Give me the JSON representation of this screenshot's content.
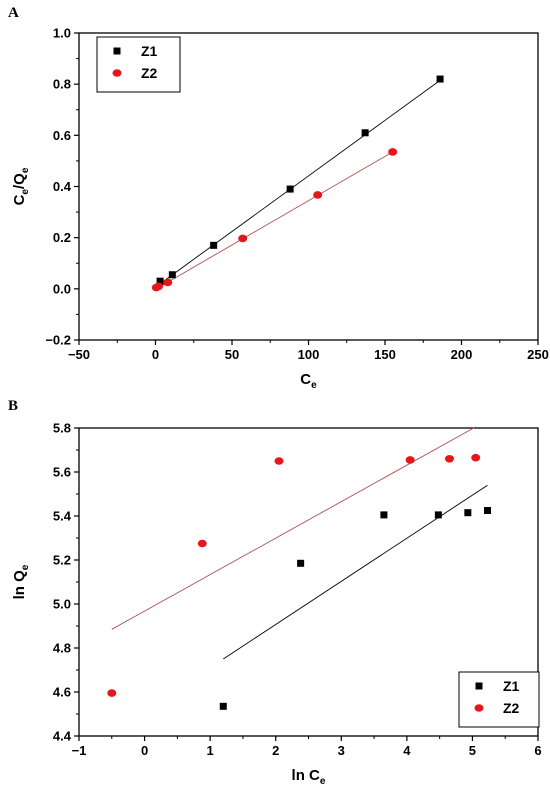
{
  "chart_data": [
    {
      "type": "scatter",
      "panel": "A",
      "xlabel_main": "C",
      "xlabel_sub": "e",
      "ylabel_parts": [
        "C",
        "e",
        "/Q",
        "e"
      ],
      "xlim": [
        -50,
        250
      ],
      "ylim": [
        -0.2,
        1.0
      ],
      "x_ticks": [
        -50,
        0,
        50,
        100,
        150,
        200,
        250
      ],
      "x_tick_labels": [
        "−50",
        "0",
        "50",
        "100",
        "150",
        "200",
        "250"
      ],
      "y_ticks": [
        -0.2,
        0.0,
        0.2,
        0.4,
        0.6,
        0.8,
        1.0
      ],
      "y_tick_labels": [
        "−0.2",
        "0.0",
        "0.2",
        "0.4",
        "0.6",
        "0.8",
        "1.0"
      ],
      "grid": false,
      "legend": "top-left",
      "series": [
        {
          "name": "Z1",
          "marker": "square",
          "color": "#000000",
          "fit_color": "#000000",
          "x": [
            3,
            11,
            38,
            88,
            137,
            186
          ],
          "y": [
            0.03,
            0.055,
            0.17,
            0.39,
            0.61,
            0.82
          ],
          "fit": [
            [
              3,
              0.02
            ],
            [
              186,
              0.815
            ]
          ]
        },
        {
          "name": "Z2",
          "marker": "circle",
          "color": "#e8151b",
          "fit_color": "#b05050",
          "x": [
            0.5,
            2,
            8,
            57,
            106,
            155
          ],
          "y": [
            0.005,
            0.01,
            0.025,
            0.197,
            0.367,
            0.535
          ],
          "fit": [
            [
              0.5,
              0.0
            ],
            [
              155,
              0.535
            ]
          ]
        }
      ]
    },
    {
      "type": "scatter",
      "panel": "B",
      "xlabel_main": "ln C",
      "xlabel_sub": "e",
      "ylabel_parts": [
        "ln Q",
        "e"
      ],
      "xlim": [
        -1,
        6
      ],
      "ylim": [
        4.4,
        5.8
      ],
      "x_ticks": [
        -1,
        0,
        1,
        2,
        3,
        4,
        5,
        6
      ],
      "x_tick_labels": [
        "−1",
        "0",
        "1",
        "2",
        "3",
        "4",
        "5",
        "6"
      ],
      "y_ticks": [
        4.4,
        4.6,
        4.8,
        5.0,
        5.2,
        5.4,
        5.6,
        5.8
      ],
      "y_tick_labels": [
        "4.4",
        "4.6",
        "4.8",
        "5.0",
        "5.2",
        "5.4",
        "5.6",
        "5.8"
      ],
      "grid": false,
      "legend": "bottom-right",
      "series": [
        {
          "name": "Z1",
          "marker": "square",
          "color": "#000000",
          "fit_color": "#000000",
          "x": [
            1.2,
            2.38,
            3.65,
            4.48,
            4.93,
            5.23
          ],
          "y": [
            4.535,
            5.185,
            5.405,
            5.405,
            5.415,
            5.425
          ],
          "fit": [
            [
              1.2,
              4.75
            ],
            [
              5.23,
              5.54
            ]
          ]
        },
        {
          "name": "Z2",
          "marker": "circle",
          "color": "#e8151b",
          "fit_color": "#b05050",
          "x": [
            -0.5,
            0.88,
            2.05,
            4.05,
            4.65,
            5.05
          ],
          "y": [
            4.595,
            5.275,
            5.65,
            5.655,
            5.66,
            5.665
          ],
          "fit": [
            [
              -0.5,
              4.885
            ],
            [
              5.05,
              5.805
            ]
          ]
        }
      ]
    }
  ]
}
